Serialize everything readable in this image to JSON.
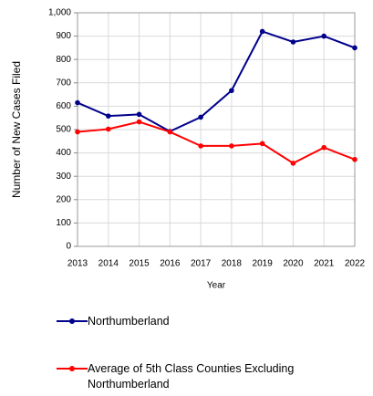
{
  "chart_data": {
    "type": "line",
    "x_label": "Year",
    "y_label": "Number of New Cases Filed",
    "categories": [
      "2013",
      "2014",
      "2015",
      "2016",
      "2017",
      "2018",
      "2019",
      "2020",
      "2021",
      "2022"
    ],
    "series": [
      {
        "name": "Northumberland",
        "color": "#00008b",
        "values": [
          615,
          558,
          565,
          492,
          553,
          667,
          920,
          875,
          900,
          850
        ]
      },
      {
        "name": "Average of 5th Class Counties Excluding Northumberland",
        "color": "#ff0000",
        "values": [
          490,
          502,
          533,
          490,
          430,
          430,
          440,
          356,
          423,
          372
        ]
      }
    ],
    "ylim": [
      0,
      1000
    ],
    "yticks": [
      0,
      100,
      200,
      300,
      400,
      500,
      600,
      700,
      800,
      900,
      {
        "value": 1000,
        "label": "1,000"
      }
    ],
    "grid": true
  }
}
